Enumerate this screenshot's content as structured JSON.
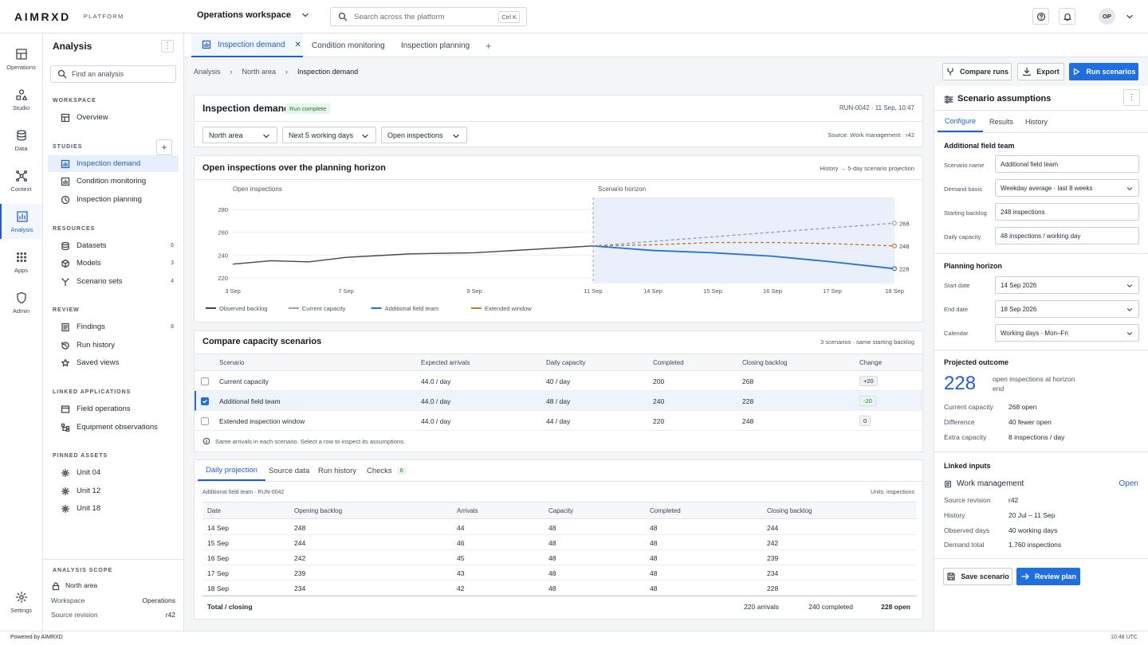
{
  "brand": {
    "logo": "AIMRXD",
    "platform": "PLATFORM",
    "footer": "Powered by AIMRXD",
    "clock": "10:48 UTC"
  },
  "topbar": {
    "workspace": "Operations workspace",
    "search_placeholder": "Search across the platform",
    "shortcut": "Ctrl K",
    "avatar": "OP"
  },
  "rail": [
    "Operations",
    "Studio",
    "Data",
    "Context",
    "Analysis",
    "Apps",
    "Admin",
    "Settings"
  ],
  "sidebar": {
    "title": "Analysis",
    "search_placeholder": "Find an analysis",
    "sections": {
      "workspace": "WORKSPACE",
      "studies": "STUDIES",
      "resources": "RESOURCES",
      "review": "REVIEW",
      "linked": "LINKED APPLICATIONS",
      "pinned": "PINNED ASSETS",
      "scope": "ANALYSIS SCOPE"
    },
    "overview": "Overview",
    "studies": [
      "Inspection demand",
      "Condition monitoring",
      "Inspection planning"
    ],
    "resources": [
      {
        "label": "Datasets",
        "count": "6"
      },
      {
        "label": "Models",
        "count": "3"
      },
      {
        "label": "Scenario sets",
        "count": "4"
      }
    ],
    "review": [
      {
        "label": "Findings",
        "count": "8"
      },
      {
        "label": "Run history",
        "count": ""
      },
      {
        "label": "Saved views",
        "count": ""
      }
    ],
    "linked": [
      "Field operations",
      "Equipment observations"
    ],
    "pinned": [
      "Unit 04",
      "Unit 12",
      "Unit 18"
    ],
    "scope": {
      "area": "North area",
      "workspace_label": "Workspace",
      "workspace_value": "Operations",
      "revision_label": "Source revision",
      "revision_value": "r42"
    }
  },
  "tabs": [
    "Inspection demand",
    "Condition monitoring",
    "Inspection planning"
  ],
  "breadcrumb": [
    "Analysis",
    "North area",
    "Inspection demand"
  ],
  "actions": {
    "compare": "Compare runs",
    "export": "Export",
    "run": "Run scenarios"
  },
  "header": {
    "title": "Inspection demand",
    "status": "Run complete",
    "run": "RUN-0042 · 11 Sep, 10:47",
    "filters": [
      "North area",
      "Next 5 working days",
      "Open inspections"
    ],
    "source": "Source: Work management · r42"
  },
  "chart": {
    "title": "Open inspections over the planning horizon",
    "note": "History → 5-day scenario projection",
    "ylabel": "Open inspections",
    "horizon_label": "Scenario horizon",
    "legend": [
      "Observed backlog",
      "Current capacity",
      "Additional field team",
      "Extended window"
    ],
    "colors": {
      "observed": "#3d4652",
      "current": "#9aa2ad",
      "additional": "#1f6fe0",
      "extended": "#c47a2c"
    }
  },
  "chart_data": {
    "type": "line",
    "xticks": [
      "3 Sep",
      "7 Sep",
      "9 Sep",
      "11 Sep",
      "14 Sep",
      "15 Sep",
      "16 Sep",
      "17 Sep",
      "18 Sep"
    ],
    "ylim": [
      215,
      285
    ],
    "yticks": [
      220,
      240,
      260,
      280
    ],
    "series": [
      {
        "name": "Observed backlog",
        "values": [
          232,
          235,
          234,
          238,
          241,
          242,
          245,
          248,
          null,
          null,
          null,
          null,
          null
        ]
      },
      {
        "name": "Current capacity",
        "values": [
          null,
          null,
          null,
          null,
          null,
          null,
          null,
          248,
          252,
          256,
          260,
          264,
          268
        ]
      },
      {
        "name": "Additional field team",
        "values": [
          null,
          null,
          null,
          null,
          null,
          null,
          null,
          248,
          244,
          242,
          239,
          234,
          228
        ]
      },
      {
        "name": "Extended window",
        "values": [
          null,
          null,
          null,
          null,
          null,
          null,
          null,
          248,
          249,
          251,
          251,
          250,
          248
        ]
      }
    ],
    "end_labels": [
      "268",
      "248",
      "228"
    ]
  },
  "compare": {
    "title": "Compare capacity scenarios",
    "note": "3 scenarios · same starting backlog",
    "columns": [
      "Scenario",
      "Expected arrivals",
      "Daily capacity",
      "Completed",
      "Closing backlog",
      "Change"
    ],
    "rows": [
      [
        "Current capacity",
        "44.0 / day",
        "40 / day",
        "200",
        "268",
        "+20"
      ],
      [
        "Additional field team",
        "44.0 / day",
        "48 / day",
        "240",
        "228",
        "-20"
      ],
      [
        "Extended inspection window",
        "44.0 / day",
        "44 / day",
        "220",
        "248",
        "0"
      ]
    ],
    "hint": "Same arrivals in each scenario. Select a row to inspect its assumptions."
  },
  "projection": {
    "tabs": [
      "Daily projection",
      "Source data",
      "Run history",
      "Checks"
    ],
    "checks_count": "6",
    "caption": "Additional field team · RUN-0042",
    "units": "Units: inspections",
    "columns": [
      "Date",
      "Opening backlog",
      "Arrivals",
      "Capacity",
      "Completed",
      "Closing backlog"
    ],
    "rows": [
      [
        "14 Sep",
        "248",
        "44",
        "48",
        "48",
        "244"
      ],
      [
        "15 Sep",
        "244",
        "46",
        "48",
        "48",
        "242"
      ],
      [
        "16 Sep",
        "242",
        "45",
        "48",
        "48",
        "239"
      ],
      [
        "17 Sep",
        "239",
        "43",
        "48",
        "48",
        "234"
      ],
      [
        "18 Sep",
        "234",
        "42",
        "48",
        "48",
        "228"
      ]
    ],
    "total": {
      "label": "Total / closing",
      "arrivals": "220 arrivals",
      "completed": "240 completed",
      "open": "228 open"
    }
  },
  "assumptions": {
    "title": "Scenario assumptions",
    "tabs": [
      "Configure",
      "Results",
      "History"
    ],
    "field_team": "Additional field team",
    "fields": [
      {
        "label": "Scenario name",
        "value": "Additional field team"
      },
      {
        "label": "Demand basis",
        "value": "Weekday average · last 8 weeks"
      },
      {
        "label": "Starting backlog",
        "value": "248 inspections"
      },
      {
        "label": "Daily capacity",
        "value": "48 inspections / working day"
      }
    ],
    "horizon_title": "Planning horizon",
    "horizon": [
      {
        "label": "Start date",
        "value": "14 Sep 2026"
      },
      {
        "label": "End date",
        "value": "18 Sep 2026"
      },
      {
        "label": "Calendar",
        "value": "Working days · Mon–Fri"
      }
    ],
    "outcome_title": "Projected outcome",
    "outcome_value": "228",
    "outcome_text": "open inspections at horizon end",
    "outcome_rows": [
      {
        "k": "Current capacity",
        "v": "268 open"
      },
      {
        "k": "Difference",
        "v": "40 fewer open"
      },
      {
        "k": "Extra capacity",
        "v": "8 inspections / day"
      }
    ],
    "linked_title": "Linked inputs",
    "linked_name": "Work management",
    "linked_open": "Open",
    "linked_rows": [
      {
        "k": "Source revision",
        "v": "r42"
      },
      {
        "k": "History",
        "v": "20 Jul – 11 Sep"
      },
      {
        "k": "Observed days",
        "v": "40 working days"
      },
      {
        "k": "Demand total",
        "v": "1,760 inspections"
      }
    ],
    "save": "Save scenario",
    "review": "Review plan"
  }
}
